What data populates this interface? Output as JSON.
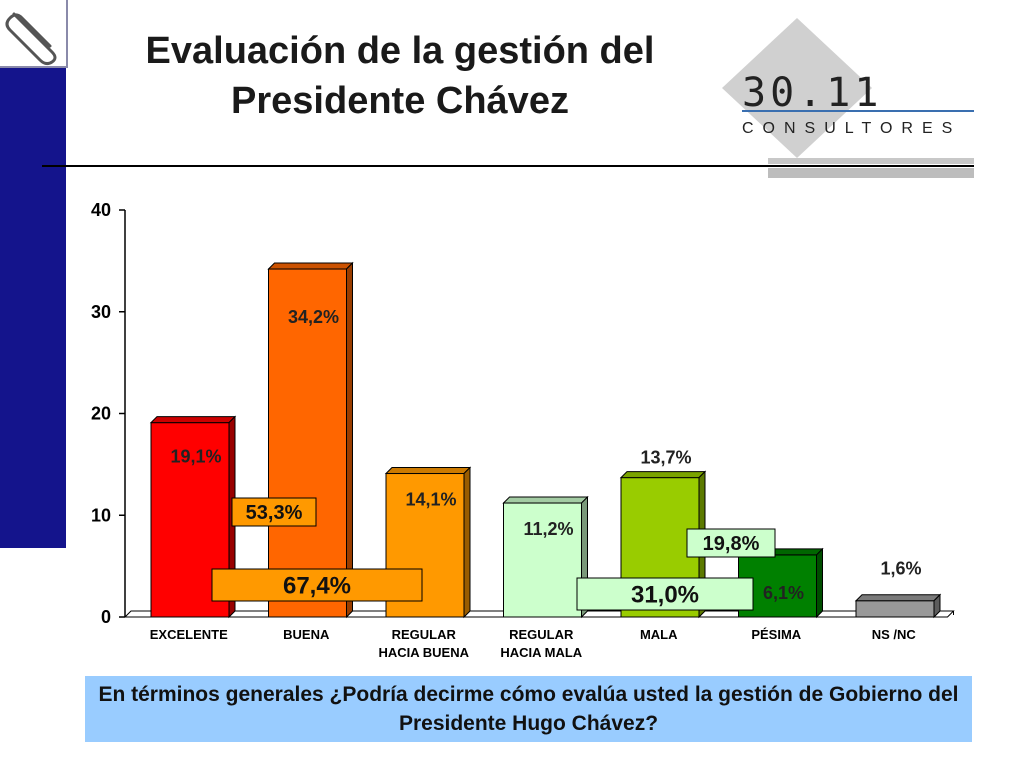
{
  "title_line1": "Evaluación de la gestión del",
  "title_line2": "Presidente Chávez",
  "logo": {
    "number": "30.11",
    "subtitle": "CONSULTORES"
  },
  "question": "En términos generales ¿Podría decirme cómo evalúa usted la gestión de Gobierno del Presidente Hugo Chávez?",
  "chart_data": {
    "type": "bar",
    "categories": [
      [
        "EXCELENTE"
      ],
      [
        "BUENA"
      ],
      [
        "REGULAR",
        "HACIA BUENA"
      ],
      [
        "REGULAR",
        "HACIA MALA"
      ],
      [
        "MALA"
      ],
      [
        "PÉSIMA"
      ],
      [
        "NS /NC"
      ]
    ],
    "values": [
      19.1,
      34.2,
      14.1,
      11.2,
      13.7,
      6.1,
      1.6
    ],
    "value_labels": [
      "19,1%",
      "34,2%",
      "14,1%",
      "11,2%",
      "13,7%",
      "6,1%",
      "1,6%"
    ],
    "colors": [
      "#ff0000",
      "#ff6600",
      "#ff9900",
      "#ccffcc",
      "#99cc00",
      "#008000",
      "#999999"
    ],
    "ylim": [
      0,
      40
    ],
    "yticks": [
      "0",
      "10",
      "20",
      "30",
      "40"
    ],
    "grid": false,
    "group_totals": [
      {
        "label": "53,3%",
        "color": "#ff9900"
      },
      {
        "label": "67,4%",
        "color": "#ff9900"
      },
      {
        "label": "19,8%",
        "color": "#ccffcc"
      },
      {
        "label": "31,0%",
        "color": "#ccffcc"
      }
    ]
  }
}
